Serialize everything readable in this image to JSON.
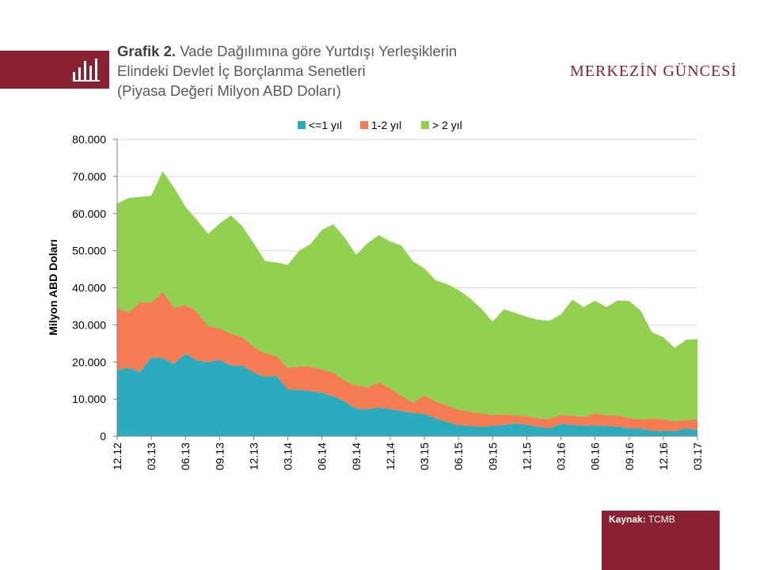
{
  "header": {
    "title_bold": "Grafik 2.",
    "title_line1": "Vade Dağılımına göre Yurtdışı Yerleşiklerin",
    "title_line2": "Elindeki Devlet İç Borçlanma Senetleri",
    "title_line3": "(Piyasa Değeri Milyon ABD Doları)",
    "logo": "MERKEZİN GÜNCESİ",
    "icon": "bar-chart-icon"
  },
  "footer": {
    "source_label": "Kaynak:",
    "source_value": "TCMB"
  },
  "colors": {
    "brand": "#8a2132",
    "series1": "#2bacbe",
    "series2": "#f47b52",
    "series3": "#92d050"
  },
  "chart_data": {
    "type": "area",
    "stacked": true,
    "ylabel": "Milyon ABD Doları",
    "ylim": [
      0,
      80000
    ],
    "yticks": [
      0,
      10000,
      20000,
      30000,
      40000,
      50000,
      60000,
      70000,
      80000
    ],
    "ytick_labels": [
      "0",
      "10.000",
      "20.000",
      "30.000",
      "40.000",
      "50.000",
      "60.000",
      "70.000",
      "80.000"
    ],
    "grid": true,
    "legend_position": "top",
    "x": [
      "12.12",
      "01.13",
      "02.13",
      "03.13",
      "04.13",
      "05.13",
      "06.13",
      "07.13",
      "08.13",
      "09.13",
      "10.13",
      "11.13",
      "12.13",
      "01.14",
      "02.14",
      "03.14",
      "04.14",
      "05.14",
      "06.14",
      "07.14",
      "08.14",
      "09.14",
      "10.14",
      "11.14",
      "12.14",
      "01.15",
      "02.15",
      "03.15",
      "04.15",
      "05.15",
      "06.15",
      "07.15",
      "08.15",
      "09.15",
      "10.15",
      "11.15",
      "12.15",
      "01.16",
      "02.16",
      "03.16",
      "04.16",
      "05.16",
      "06.16",
      "07.16",
      "08.16",
      "09.16",
      "10.16",
      "11.16",
      "12.16",
      "01.17",
      "02.17",
      "03.17"
    ],
    "xtick_labels": [
      "12.12",
      "03.13",
      "06.13",
      "09.13",
      "12.13",
      "03.14",
      "06.14",
      "09.14",
      "12.14",
      "03.15",
      "06.15",
      "09.15",
      "12.15",
      "03.16",
      "06.16",
      "09.16",
      "12.16",
      "03.17"
    ],
    "series": [
      {
        "name": "<=1 yıl",
        "values": [
          17800,
          18500,
          17300,
          21200,
          21100,
          19500,
          22300,
          20400,
          20000,
          20600,
          19100,
          19000,
          17200,
          16000,
          16300,
          12600,
          12500,
          12200,
          11700,
          10800,
          9300,
          7500,
          7200,
          7800,
          7300,
          6800,
          6300,
          6000,
          4800,
          3900,
          2900,
          2800,
          2500,
          2800,
          3000,
          3500,
          3100,
          2500,
          2100,
          3300,
          3100,
          2800,
          2900,
          2700,
          2600,
          2100,
          2100,
          1500,
          1400,
          1400,
          2100,
          1700
        ],
        "label": "<=1 yıl"
      },
      {
        "name": "1-2 yıl",
        "values": [
          16900,
          14800,
          18800,
          14800,
          17800,
          15100,
          13100,
          13200,
          9600,
          8400,
          8600,
          7700,
          6800,
          6400,
          5300,
          5800,
          6300,
          6600,
          6300,
          6300,
          5600,
          6200,
          6000,
          6700,
          5600,
          4100,
          2700,
          5000,
          4600,
          4400,
          4300,
          3800,
          3700,
          2900,
          2900,
          2100,
          2300,
          2300,
          2500,
          2500,
          2400,
          2400,
          3300,
          2900,
          3000,
          2800,
          2400,
          3300,
          3200,
          2600,
          2300,
          2900
        ]
      },
      {
        "name": "> 2 yıl",
        "values": [
          28000,
          30900,
          28400,
          28800,
          32500,
          32400,
          26400,
          24700,
          24900,
          28300,
          31800,
          29900,
          28000,
          24800,
          25200,
          27800,
          31200,
          33000,
          37600,
          40000,
          38600,
          35200,
          38800,
          39700,
          39600,
          40400,
          38100,
          34200,
          32600,
          32700,
          32200,
          30600,
          28200,
          25200,
          28300,
          27600,
          26800,
          26600,
          26500,
          27000,
          31300,
          29600,
          30300,
          29200,
          31000,
          31500,
          29400,
          23200,
          22100,
          19800,
          21600,
          21600
        ]
      }
    ]
  }
}
